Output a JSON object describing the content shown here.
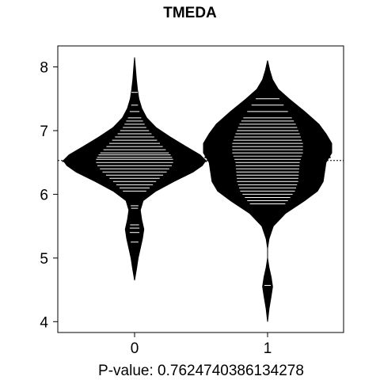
{
  "chart_data": {
    "type": "beanplot",
    "title": "TMEDA",
    "xlabel": "P-value: 0.7624740386134278",
    "categories": [
      "0",
      "1"
    ],
    "ylim": [
      3.83,
      8.33
    ],
    "y_ticks": [
      4,
      5,
      6,
      7,
      8
    ],
    "overall_mean": 6.53,
    "groups": [
      {
        "category": "0",
        "mean": 6.52,
        "min": 4.65,
        "max": 8.15,
        "density": [
          [
            4.65,
            0.0
          ],
          [
            4.85,
            0.03
          ],
          [
            5.0,
            0.05
          ],
          [
            5.15,
            0.08
          ],
          [
            5.3,
            0.11
          ],
          [
            5.45,
            0.13
          ],
          [
            5.6,
            0.1
          ],
          [
            5.75,
            0.08
          ],
          [
            5.9,
            0.12
          ],
          [
            6.05,
            0.3
          ],
          [
            6.2,
            0.55
          ],
          [
            6.35,
            0.82
          ],
          [
            6.45,
            0.95
          ],
          [
            6.53,
            1.0
          ],
          [
            6.62,
            0.92
          ],
          [
            6.75,
            0.72
          ],
          [
            6.9,
            0.5
          ],
          [
            7.05,
            0.3
          ],
          [
            7.2,
            0.17
          ],
          [
            7.35,
            0.1
          ],
          [
            7.5,
            0.06
          ],
          [
            7.65,
            0.04
          ],
          [
            7.8,
            0.025
          ],
          [
            7.95,
            0.015
          ],
          [
            8.15,
            0.0
          ]
        ],
        "points": [
          5.25,
          5.4,
          5.47,
          5.52,
          5.78,
          5.82,
          6.05,
          6.1,
          6.15,
          6.2,
          6.25,
          6.3,
          6.35,
          6.4,
          6.45,
          6.5,
          6.55,
          6.58,
          6.62,
          6.65,
          6.7,
          6.75,
          6.8,
          6.85,
          6.9,
          6.95,
          7.0,
          7.05,
          7.1,
          7.15,
          7.2,
          7.3,
          7.4,
          7.6
        ]
      },
      {
        "category": "1",
        "mean": 6.58,
        "min": 4.0,
        "max": 8.1,
        "density": [
          [
            4.0,
            0.0
          ],
          [
            4.2,
            0.02
          ],
          [
            4.4,
            0.05
          ],
          [
            4.55,
            0.07
          ],
          [
            4.7,
            0.05
          ],
          [
            4.85,
            0.02
          ],
          [
            5.0,
            0.0
          ],
          [
            5.15,
            0.0
          ],
          [
            5.3,
            0.02
          ],
          [
            5.5,
            0.08
          ],
          [
            5.7,
            0.25
          ],
          [
            5.9,
            0.52
          ],
          [
            6.05,
            0.7
          ],
          [
            6.2,
            0.78
          ],
          [
            6.35,
            0.8
          ],
          [
            6.5,
            0.82
          ],
          [
            6.65,
            0.9
          ],
          [
            6.8,
            0.9
          ],
          [
            6.95,
            0.82
          ],
          [
            7.1,
            0.72
          ],
          [
            7.3,
            0.52
          ],
          [
            7.5,
            0.3
          ],
          [
            7.65,
            0.15
          ],
          [
            7.8,
            0.07
          ],
          [
            7.95,
            0.03
          ],
          [
            8.1,
            0.0
          ]
        ],
        "points": [
          4.57,
          5.85,
          5.9,
          5.95,
          6.0,
          6.05,
          6.1,
          6.15,
          6.2,
          6.25,
          6.3,
          6.35,
          6.4,
          6.45,
          6.5,
          6.55,
          6.6,
          6.65,
          6.7,
          6.75,
          6.8,
          6.85,
          6.9,
          6.95,
          7.0,
          7.05,
          7.1,
          7.15,
          7.2,
          7.3,
          7.4,
          7.5
        ]
      }
    ]
  }
}
